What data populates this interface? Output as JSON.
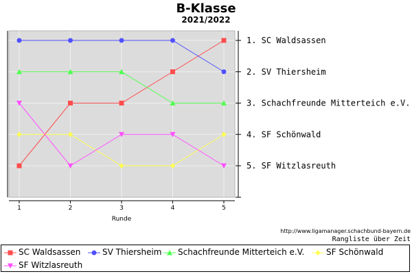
{
  "chart_data": {
    "type": "line",
    "title": "B-Klasse",
    "subtitle": "2021/2022",
    "xlabel": "Runde",
    "x": [
      1,
      2,
      3,
      4,
      5
    ],
    "ylim": [
      1,
      5
    ],
    "grid": true,
    "legend_position": "bottom",
    "series": [
      {
        "name": "SC Waldsassen",
        "color": "#ff4d4d",
        "marker": "square",
        "values": [
          5,
          3,
          3,
          2,
          1
        ]
      },
      {
        "name": "SV Thiersheim",
        "color": "#5050ff",
        "marker": "circle",
        "values": [
          1,
          1,
          1,
          1,
          2
        ]
      },
      {
        "name": "Schachfreunde Mitterteich e.V.",
        "color": "#50ff50",
        "marker": "triangle",
        "values": [
          2,
          2,
          2,
          3,
          3
        ]
      },
      {
        "name": "SF Schönwald",
        "color": "#ffff50",
        "marker": "diamond",
        "values": [
          4,
          4,
          5,
          5,
          4
        ]
      },
      {
        "name": "SF Witzlasreuth",
        "color": "#ff50ff",
        "marker": "triangle-down",
        "values": [
          3,
          5,
          4,
          4,
          5
        ]
      }
    ],
    "right_labels": [
      "1.  SC Waldsassen",
      "2.  SV Thiersheim",
      "3.  Schachfreunde Mitterteich e.V.",
      "4.  SF Schönwald",
      "5.  SF Witzlasreuth"
    ]
  },
  "footer": {
    "source": "http://www.ligamanager.schachbund-bayern.de",
    "caption": "Rangliste über Zeit"
  }
}
